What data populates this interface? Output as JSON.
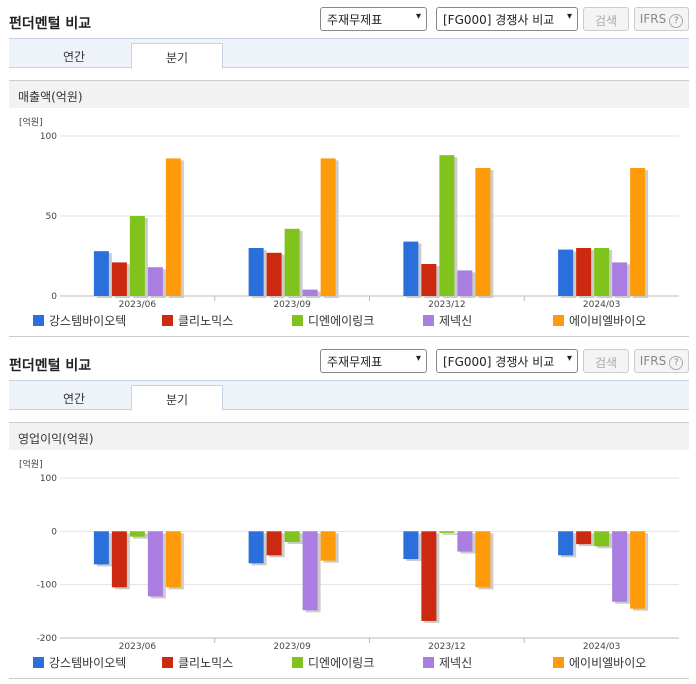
{
  "colors": {
    "series": [
      "#2a6fdb",
      "#cc2a10",
      "#80c31c",
      "#a97ee0",
      "#ff9a0a"
    ]
  },
  "panels": [
    {
      "title": "펀더멘털 비교",
      "select1": "주재무제표",
      "select2": "[FG000] 경쟁사 비교",
      "search_label": "검색",
      "ifrs_label": "IFRS",
      "help_icon": "help-circle-icon",
      "tabs": [
        "연간",
        "분기"
      ],
      "active_tab": 1,
      "section_title": "매출액(억원)"
    },
    {
      "title": "펀더멘털 비교",
      "select1": "주재무제표",
      "select2": "[FG000] 경쟁사 비교",
      "search_label": "검색",
      "ifrs_label": "IFRS",
      "help_icon": "help-circle-icon",
      "tabs": [
        "연간",
        "분기"
      ],
      "active_tab": 1,
      "section_title": "영업이익(억원)"
    }
  ],
  "chart_data": [
    {
      "type": "bar",
      "title": "매출액(억원)",
      "unit_label": "[억원]",
      "categories": [
        "2023/06",
        "2023/09",
        "2023/12",
        "2024/03"
      ],
      "ylim": [
        0,
        100
      ],
      "yticks": [
        0,
        50,
        100
      ],
      "grid": true,
      "legend": "bottom",
      "series": [
        {
          "name": "강스템바이오텍",
          "values": [
            28,
            30,
            34,
            29
          ]
        },
        {
          "name": "클리노믹스",
          "values": [
            21,
            27,
            20,
            30
          ]
        },
        {
          "name": "디엔에이링크",
          "values": [
            50,
            42,
            88,
            30
          ]
        },
        {
          "name": "제넥신",
          "values": [
            18,
            4,
            16,
            21
          ]
        },
        {
          "name": "에이비엘바이오",
          "values": [
            86,
            86,
            80,
            80
          ]
        }
      ]
    },
    {
      "type": "bar",
      "title": "영업이익(억원)",
      "unit_label": "[억원]",
      "categories": [
        "2023/06",
        "2023/09",
        "2023/12",
        "2024/03"
      ],
      "ylim": [
        -200,
        100
      ],
      "yticks": [
        -200,
        -100,
        0,
        100
      ],
      "grid": true,
      "legend": "bottom",
      "series": [
        {
          "name": "강스템바이오텍",
          "values": [
            -62,
            -60,
            -52,
            -45
          ]
        },
        {
          "name": "클리노믹스",
          "values": [
            -105,
            -45,
            -168,
            -24
          ]
        },
        {
          "name": "디엔에이링크",
          "values": [
            -10,
            -20,
            -3,
            -28
          ]
        },
        {
          "name": "제넥신",
          "values": [
            -122,
            -148,
            -38,
            -132
          ]
        },
        {
          "name": "에이비엘바이오",
          "values": [
            -105,
            -55,
            -105,
            -145
          ]
        }
      ]
    }
  ]
}
